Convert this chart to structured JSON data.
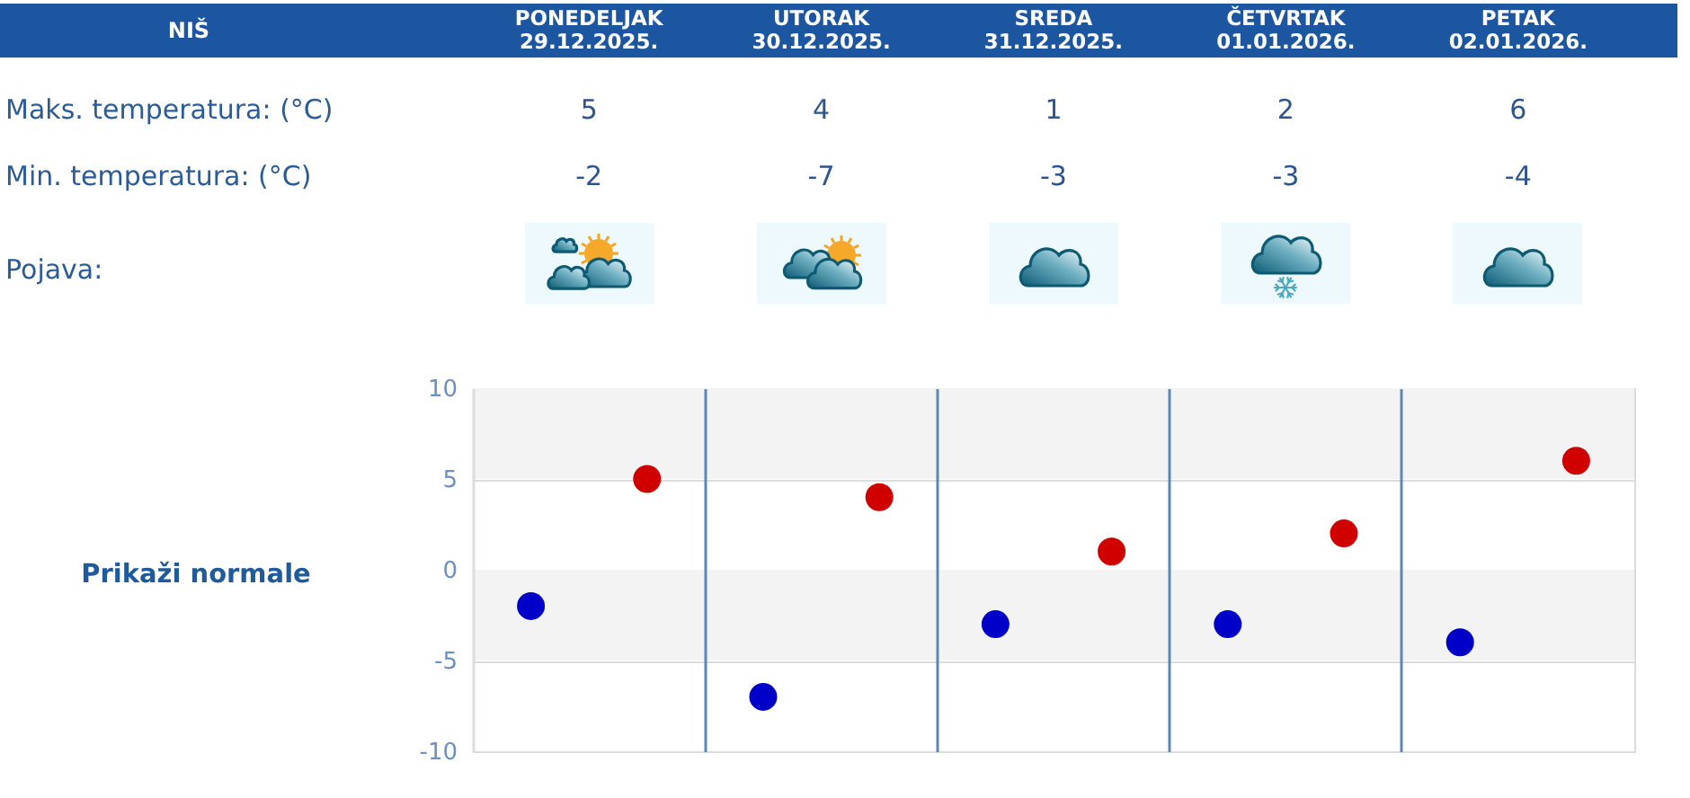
{
  "chart_data": {
    "type": "scatter",
    "title": "NIŠ",
    "categories": [
      null,
      null,
      null,
      null,
      null
    ],
    "series": [
      {
        "color": "#d10000",
        "values": [
          5,
          4,
          1,
          2,
          6
        ]
      },
      {
        "color": "#0000c8",
        "values": [
          -2,
          -7,
          -3,
          -3,
          -4
        ]
      }
    ],
    "ylim": [
      -10,
      10
    ],
    "yticks": [
      -10,
      -5,
      0,
      5,
      10
    ],
    "grid": true,
    "marker": "circle",
    "data_labels": true,
    "tick_labels": "y",
    "bands": [
      {
        "axis": "y",
        "from": 5,
        "to": 10,
        "color": "#f3f3f3"
      },
      {
        "axis": "y",
        "from": -5,
        "to": 0,
        "color": "#f3f3f3"
      }
    ],
    "annotations": [
      "PONEDELJAK 29.12.2025.",
      "UTORAK 30.12.2025.",
      "SREDA 31.12.2025.",
      "ČETVRTAK 01.01.2026.",
      "PETAK 02.01.2026.",
      "Maks. temperatura: (°C)",
      "Min. temperatura: (°C)",
      "Pojava:",
      "Prikaži normale"
    ]
  }
}
